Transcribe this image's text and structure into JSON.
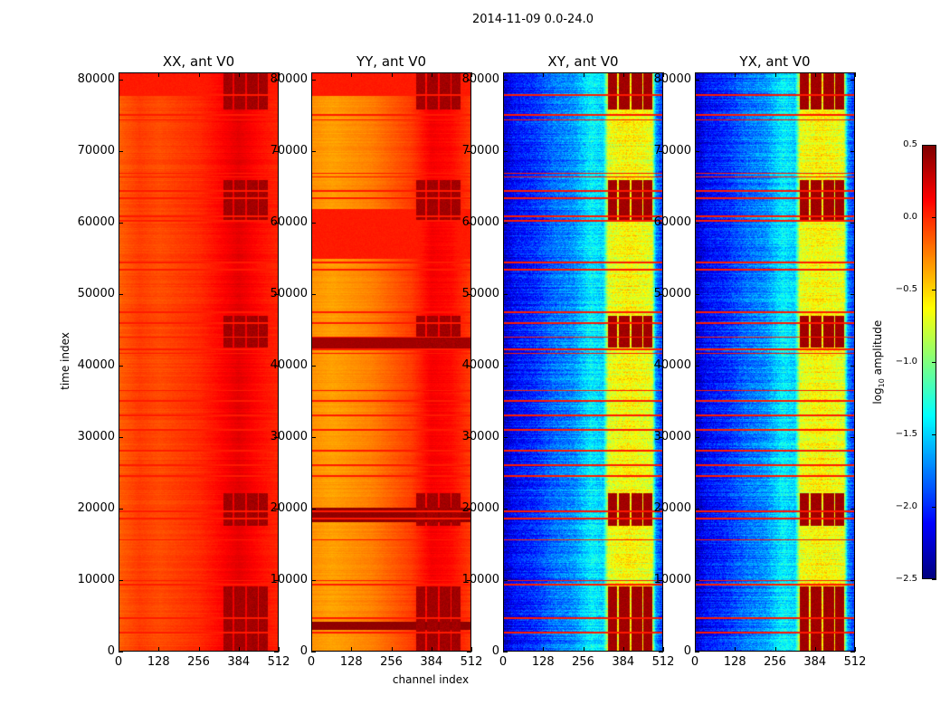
{
  "figure": {
    "suptitle": "2014-11-09 0.0-24.0",
    "xlabel": "channel index",
    "ylabel": "time index",
    "colorbar": {
      "label_prefix": "log",
      "label_sub": "10",
      "label_suffix": " amplitude",
      "range": [
        -2.5,
        0.5
      ],
      "ticks": [
        "0.5",
        "0.0",
        "−0.5",
        "−1.0",
        "−1.5",
        "−2.0",
        "−2.5"
      ],
      "tick_values": [
        0.5,
        0.0,
        -0.5,
        -1.0,
        -1.5,
        -2.0,
        -2.5
      ],
      "colormap": "jet"
    }
  },
  "chart_data": {
    "type": "heatmap",
    "title": "2014-11-09 0.0-24.0",
    "xlabel": "channel index",
    "ylabel": "time index",
    "xlim": [
      0,
      512
    ],
    "ylim": [
      0,
      81000
    ],
    "xticks": [
      0,
      128,
      256,
      384,
      512
    ],
    "yticks": [
      0,
      10000,
      20000,
      30000,
      40000,
      50000,
      60000,
      70000,
      80000
    ],
    "xtick_labels": [
      "0",
      "128",
      "256",
      "384",
      "512"
    ],
    "ytick_labels": [
      "0",
      "10000",
      "20000",
      "30000",
      "40000",
      "50000",
      "60000",
      "70000",
      "80000"
    ],
    "value_label": "log10 amplitude",
    "value_range": [
      -2.5,
      0.5
    ],
    "rfi_channel_blocks": [
      [
        335,
        365
      ],
      [
        370,
        405
      ],
      [
        410,
        445
      ],
      [
        450,
        478
      ]
    ],
    "rfi_time_ranges": [
      [
        0,
        9000
      ],
      [
        17500,
        22000
      ],
      [
        42500,
        47000
      ],
      [
        60500,
        66000
      ],
      [
        76000,
        81000
      ]
    ],
    "flagged_times": [
      2500,
      4500,
      9200,
      9800,
      15500,
      18500,
      19500,
      24500,
      26000,
      28000,
      31000,
      33000,
      35000,
      36500,
      41700,
      42300,
      44000,
      46000,
      47500,
      53500,
      54500,
      60300,
      61000,
      63500,
      64500,
      66500,
      67000,
      74500,
      75200,
      78000
    ],
    "panels": [
      {
        "title": "XX, ant V0",
        "profile": [
          [
            0,
            -0.15
          ],
          [
            64,
            -0.05
          ],
          [
            128,
            -0.1
          ],
          [
            192,
            -0.05
          ],
          [
            256,
            0.0
          ],
          [
            320,
            0.1
          ],
          [
            384,
            0.2
          ],
          [
            448,
            0.1
          ],
          [
            512,
            0.02
          ]
        ],
        "block_value": 0.45,
        "full_width_bands": [
          [
            78000,
            81000,
            0.05
          ]
        ]
      },
      {
        "title": "YY, ant V0",
        "profile": [
          [
            0,
            -0.3
          ],
          [
            64,
            -0.35
          ],
          [
            128,
            -0.3
          ],
          [
            192,
            -0.25
          ],
          [
            256,
            -0.15
          ],
          [
            320,
            -0.05
          ],
          [
            384,
            0.15
          ],
          [
            448,
            0.1
          ],
          [
            512,
            -0.05
          ]
        ],
        "block_value": 0.45,
        "full_width_bands": [
          [
            2800,
            4000,
            0.45
          ],
          [
            18000,
            20000,
            0.45
          ],
          [
            42200,
            44000,
            0.4
          ],
          [
            55000,
            62000,
            0.05
          ],
          [
            78000,
            81000,
            0.05
          ]
        ]
      },
      {
        "title": "XY, ant V0",
        "profile": [
          [
            0,
            -2.3
          ],
          [
            32,
            -2.1
          ],
          [
            96,
            -2.0
          ],
          [
            160,
            -1.8
          ],
          [
            224,
            -1.7
          ],
          [
            280,
            -1.4
          ],
          [
            320,
            -1.5
          ],
          [
            336,
            -0.7
          ],
          [
            400,
            -0.6
          ],
          [
            478,
            -0.7
          ],
          [
            490,
            -1.7
          ],
          [
            512,
            -2.0
          ]
        ],
        "block_value": 0.45,
        "full_width_bands": []
      },
      {
        "title": "YX, ant V0",
        "profile": [
          [
            0,
            -2.3
          ],
          [
            32,
            -2.1
          ],
          [
            96,
            -2.0
          ],
          [
            160,
            -1.8
          ],
          [
            224,
            -1.7
          ],
          [
            280,
            -1.4
          ],
          [
            320,
            -1.5
          ],
          [
            336,
            -0.7
          ],
          [
            400,
            -0.6
          ],
          [
            478,
            -0.7
          ],
          [
            490,
            -1.7
          ],
          [
            512,
            -2.0
          ]
        ],
        "block_value": 0.45,
        "full_width_bands": []
      }
    ]
  }
}
